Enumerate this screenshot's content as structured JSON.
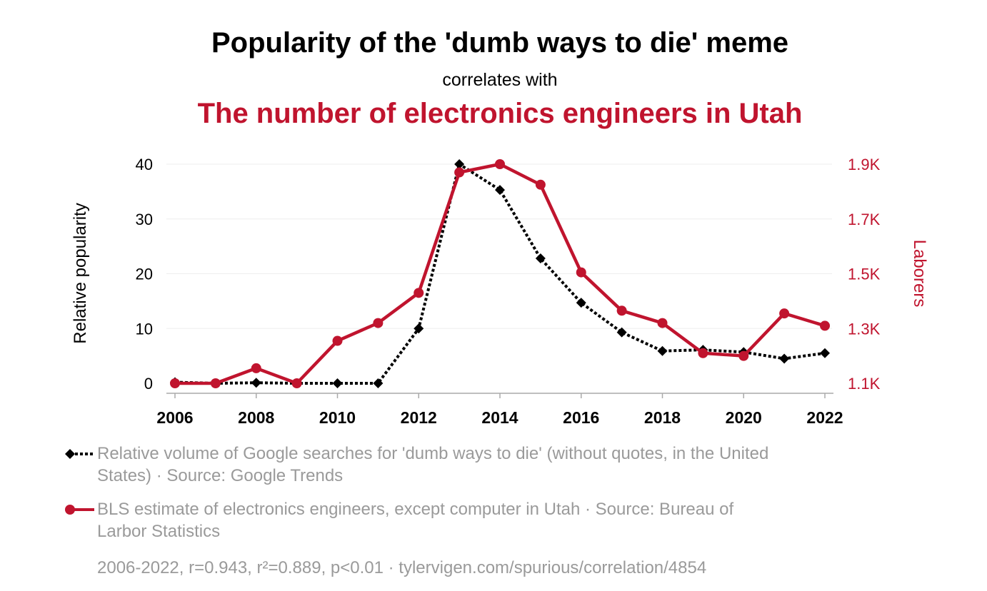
{
  "title": "Popularity of the 'dumb ways to die' meme",
  "subtitle": "correlates with",
  "title2": "The number of electronics engineers in Utah",
  "colors": {
    "series1": "#000000",
    "series2": "#c0142e",
    "legend_text": "#9a9a9a",
    "grid": "#eeeeee"
  },
  "chart_data": {
    "type": "line",
    "x": [
      2006,
      2007,
      2008,
      2009,
      2010,
      2011,
      2012,
      2013,
      2014,
      2015,
      2016,
      2017,
      2018,
      2019,
      2020,
      2021,
      2022
    ],
    "x_ticks": [
      "2006",
      "2008",
      "2010",
      "2012",
      "2014",
      "2016",
      "2018",
      "2020",
      "2022"
    ],
    "y_left_label": "Relative popularity",
    "y_left_range": [
      0,
      40
    ],
    "y_left_ticks": [
      "0",
      "10",
      "20",
      "30",
      "40"
    ],
    "y_right_label": "Laborers",
    "y_right_range": [
      1100,
      1900
    ],
    "y_right_ticks": [
      "1.1K",
      "1.3K",
      "1.5K",
      "1.7K",
      "1.9K"
    ],
    "series": [
      {
        "name": "dumb ways to die",
        "axis": "left",
        "style": "dotted",
        "marker": "diamond",
        "values": [
          0.2,
          0,
          0.1,
          0,
          0,
          0,
          10,
          40,
          35.3,
          22.8,
          14.7,
          9.3,
          5.9,
          6.1,
          5.7,
          4.5,
          5.5
        ]
      },
      {
        "name": "electronics engineers in Utah",
        "axis": "right",
        "style": "solid",
        "marker": "circle",
        "values": [
          1100,
          1100,
          1155,
          1100,
          1255,
          1320,
          1430,
          1870,
          1900,
          1825,
          1505,
          1365,
          1320,
          1210,
          1200,
          1355,
          1310
        ]
      }
    ]
  },
  "legend": [
    {
      "text": "Relative volume of Google searches for 'dumb ways to die' (without quotes, in the United States) · Source: Google Trends"
    },
    {
      "text": "BLS estimate of electronics engineers, except computer in Utah · Source: Bureau of Larbor Statistics"
    }
  ],
  "footer": "2006-2022, r=0.943, r²=0.889, p<0.01 · tylervigen.com/spurious/correlation/4854"
}
